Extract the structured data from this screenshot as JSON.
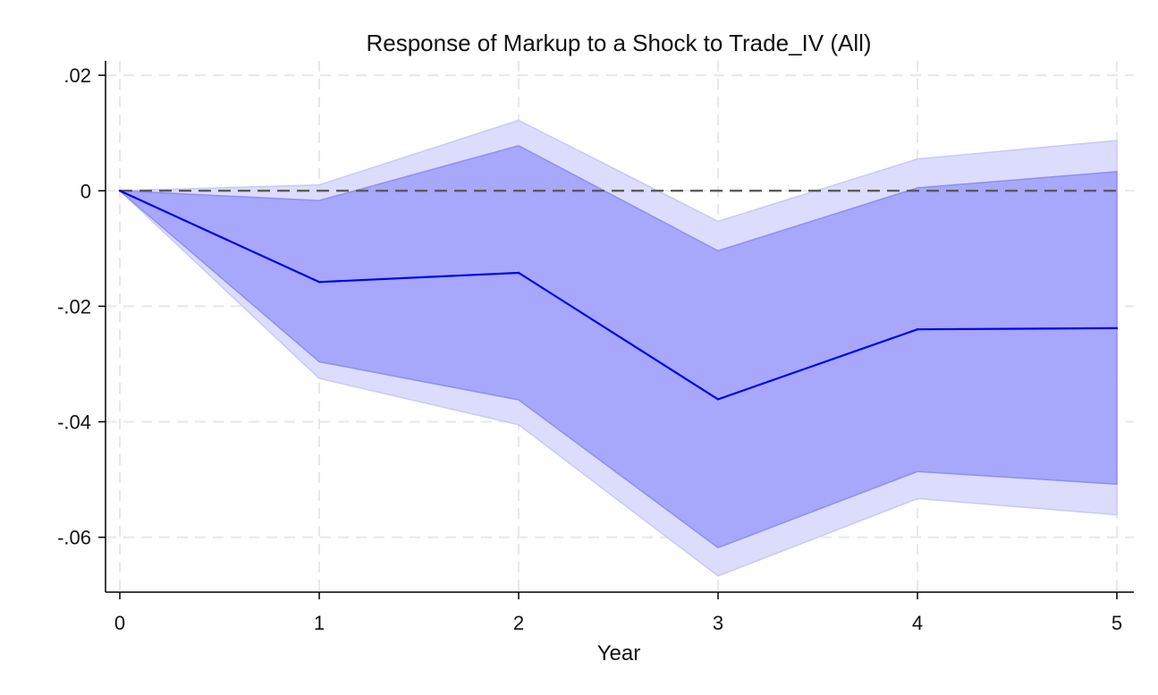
{
  "chart_data": {
    "type": "area",
    "title": "Response of Markup to a Shock to Trade_IV (All)",
    "xlabel": "Year",
    "ylabel": "",
    "x": [
      0,
      1,
      2,
      3,
      4,
      5
    ],
    "x_ticks": [
      0,
      1,
      2,
      3,
      4,
      5
    ],
    "x_tick_labels": [
      "0",
      "1",
      "2",
      "3",
      "4",
      "5"
    ],
    "y_ticks": [
      0.02,
      0,
      -0.02,
      -0.04,
      -0.06
    ],
    "y_tick_labels": [
      ".02",
      "0",
      "-.02",
      "-.04",
      "-.06"
    ],
    "xlim": [
      0,
      5
    ],
    "ylim": [
      -0.0695,
      0.0225
    ],
    "grid": true,
    "reference_line": 0,
    "series": [
      {
        "role": "outer-band",
        "lower": [
          0,
          -0.0325,
          -0.0405,
          -0.0667,
          -0.0533,
          -0.0561
        ],
        "upper": [
          0,
          0.001,
          0.0122,
          -0.0053,
          0.0055,
          0.0087
        ]
      },
      {
        "role": "inner-band",
        "lower": [
          0,
          -0.0296,
          -0.0362,
          -0.0618,
          -0.0486,
          -0.0508
        ],
        "upper": [
          0,
          -0.0017,
          0.0078,
          -0.0104,
          0.0005,
          0.0033
        ]
      },
      {
        "role": "estimate",
        "values": [
          0,
          -0.0158,
          -0.0142,
          -0.0361,
          -0.024,
          -0.0238
        ]
      }
    ],
    "colors": {
      "outer_band": "#dcdcfc",
      "inner_band": "#a7a7fb",
      "outer_edge": "#c9c9f7",
      "inner_edge": "#8f8ff2",
      "line": "#0000ee",
      "reference": "#555555",
      "grid": "#e8e8e8",
      "axis": "#000000"
    }
  }
}
